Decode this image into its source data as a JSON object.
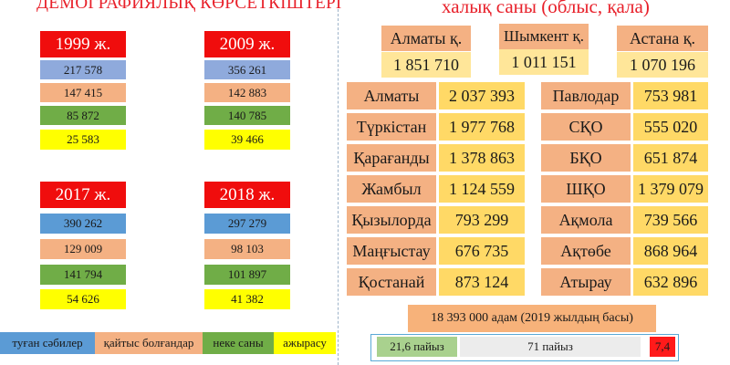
{
  "left_title": "ДЕМОГРАФИЯЛЫҚ КӨРСЕТКІШТЕРІ",
  "right_title": "халық саны (облыс, қала)",
  "years": [
    {
      "label": "1999 ж.",
      "births": "217 578",
      "deaths": "147 415",
      "marriages": "85 872",
      "divorces": "25 583"
    },
    {
      "label": "2009 ж.",
      "births": "356 261",
      "deaths": "142 883",
      "marriages": "140 785",
      "divorces": "39 466"
    },
    {
      "label": "2017 ж.",
      "births": "390 262",
      "deaths": "129 009",
      "marriages": "141 794",
      "divorces": "54 626"
    },
    {
      "label": "2018 ж.",
      "births": "297 279",
      "deaths": "98 103",
      "marriages": "101 897",
      "divorces": "41 382"
    }
  ],
  "legend": {
    "births": "туған сәбилер",
    "deaths": "қайтыс болғандар",
    "marriages": "неке саны",
    "divorces": "ажырасу"
  },
  "cities": [
    {
      "name": "Алматы қ.",
      "value": "1 851 710"
    },
    {
      "name": "Шымкент қ.",
      "value": "1 011 151"
    },
    {
      "name": "Астана қ.",
      "value": "1 070 196"
    }
  ],
  "regions_left": [
    {
      "name": "Алматы",
      "value": "2 037 393"
    },
    {
      "name": "Түркістан",
      "value": "1 977 768"
    },
    {
      "name": "Қарағанды",
      "value": "1 378 863"
    },
    {
      "name": "Жамбыл",
      "value": "1 124 559"
    },
    {
      "name": "Қызылорда",
      "value": "793 299"
    },
    {
      "name": "Маңғыстау",
      "value": "676 735"
    },
    {
      "name": "Қостанай",
      "value": "873 124"
    }
  ],
  "regions_right": [
    {
      "name": "Павлодар",
      "value": "753 981"
    },
    {
      "name": "СҚО",
      "value": "555 020"
    },
    {
      "name": "БҚО",
      "value": "651 874"
    },
    {
      "name": "ШҚО",
      "value": "1 379 079"
    },
    {
      "name": "Ақмола",
      "value": "739 566"
    },
    {
      "name": "Ақтөбе",
      "value": "868 964"
    },
    {
      "name": "Атырау",
      "value": "632 896"
    }
  ],
  "summary": "18 393 000 адам (2019 жылдың басы)",
  "bar": {
    "seg1": "21,6 пайыз",
    "seg2": "71 пайыз",
    "seg3": "7,4"
  }
}
